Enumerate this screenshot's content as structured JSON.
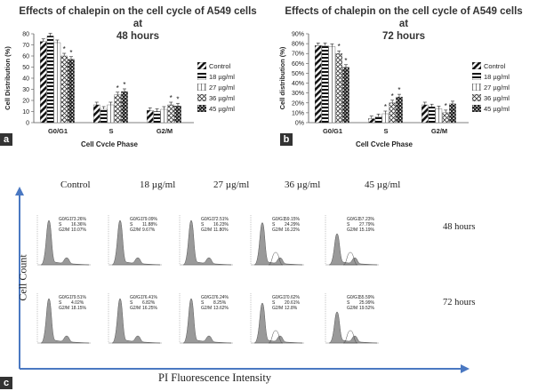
{
  "chart_data": [
    {
      "type": "bar",
      "panel": "a",
      "title": "Effects of chalepin on the cell cycle of A549 cells at 48 hours",
      "xlabel": "Cell Cycle Phase",
      "ylabel": "Cell Distribution (%)",
      "ylim": [
        0,
        80
      ],
      "yticks": [
        "0",
        "10",
        "20",
        "30",
        "40",
        "50",
        "60",
        "70",
        "80"
      ],
      "categories": [
        "G0/G1",
        "S",
        "G2/M"
      ],
      "series": [
        {
          "name": "Control",
          "values": [
            73,
            16,
            11
          ]
        },
        {
          "name": "18 µg/ml",
          "values": [
            78,
            12,
            10
          ]
        },
        {
          "name": "27 µg/ml",
          "values": [
            72,
            16,
            12
          ]
        },
        {
          "name": "36 µg/ml",
          "values": [
            60,
            25,
            16
          ]
        },
        {
          "name": "45 µg/ml",
          "values": [
            57,
            28,
            15
          ]
        }
      ],
      "stars": [
        [
          0,
          4
        ],
        [
          0,
          3
        ],
        [
          1,
          4
        ],
        [
          1,
          3
        ],
        [
          2,
          3
        ],
        [
          2,
          4
        ]
      ]
    },
    {
      "type": "bar",
      "panel": "b",
      "title": "Effects of chalepin on the cell cycle of A549 cells at 72 hours",
      "xlabel": "Cell Cycle Phase",
      "ylabel": "Cell distribution (%)",
      "ylim": [
        0,
        90
      ],
      "yticks": [
        "0%",
        "10%",
        "20%",
        "30%",
        "40%",
        "50%",
        "60%",
        "70%",
        "80%",
        "90%"
      ],
      "categories": [
        "G0/G1",
        "S",
        "G2/M"
      ],
      "series": [
        {
          "name": "Control",
          "values": [
            78,
            4,
            18
          ]
        },
        {
          "name": "18 µg/ml",
          "values": [
            78,
            6,
            16
          ]
        },
        {
          "name": "27 µg/ml",
          "values": [
            77,
            9,
            14
          ]
        },
        {
          "name": "36 µg/ml",
          "values": [
            70,
            20,
            10
          ]
        },
        {
          "name": "45 µg/ml",
          "values": [
            56,
            26,
            19
          ]
        }
      ],
      "stars": [
        [
          0,
          3
        ],
        [
          0,
          4
        ],
        [
          1,
          2
        ],
        [
          1,
          3
        ],
        [
          1,
          4
        ],
        [
          2,
          3
        ]
      ]
    }
  ],
  "panel_labels": {
    "a": "a",
    "b": "b",
    "c": "c"
  },
  "titles": {
    "a_line1": "Effects of chalepin on the cell cycle of A549 cells at",
    "a_line2": "48 hours",
    "b_line1": "Effects of chalepin on the cell cycle of A549 cells at",
    "b_line2": "72 hours"
  },
  "axis_labels": {
    "a_x": "Cell Cycle Phase",
    "a_y": "Cell Distribution (%)",
    "b_x": "Cell Cycle Phase",
    "b_y": "Cell distribution (%)"
  },
  "legend": [
    "Control",
    "18 µg/ml",
    "27 µg/ml",
    "36 µg/ml",
    "45 µg/ml"
  ],
  "flow": {
    "columns": [
      "Control",
      "18 µg/ml",
      "27 µg/ml",
      "36 µg/ml",
      "45 µg/ml"
    ],
    "rows": [
      "48 hours",
      "72 hours"
    ],
    "y_axis_label": "Cell Count",
    "x_axis_label": "PI Fluorescence Intensity",
    "stats": [
      [
        [
          [
            "G0/G1",
            "73.26%"
          ],
          [
            "S",
            "16.36%"
          ],
          [
            "G2/M",
            "10.07%"
          ]
        ],
        [
          [
            "G0/G1",
            "79.09%"
          ],
          [
            "S",
            "11.88%"
          ],
          [
            "G2/M",
            "9.67%"
          ]
        ],
        [
          [
            "G0/G1",
            "72.51%"
          ],
          [
            "S",
            "16.23%"
          ],
          [
            "G2/M",
            "11.80%"
          ]
        ],
        [
          [
            "G0/G1",
            "59.15%"
          ],
          [
            "S",
            "24.29%"
          ],
          [
            "G2/M",
            "16.22%"
          ]
        ],
        [
          [
            "G0/G1",
            "57.23%"
          ],
          [
            "S",
            "27.79%"
          ],
          [
            "G2/M",
            "15.19%"
          ]
        ]
      ],
      [
        [
          [
            "G0/G1",
            "79.51%"
          ],
          [
            "S",
            "4.02%"
          ],
          [
            "G2/M",
            "18.15%"
          ]
        ],
        [
          [
            "G0/G1",
            "76.41%"
          ],
          [
            "S",
            "6.82%"
          ],
          [
            "G2/M",
            "16.25%"
          ]
        ],
        [
          [
            "G0/G1",
            "76.24%"
          ],
          [
            "S",
            "8.25%"
          ],
          [
            "G2/M",
            "13.62%"
          ]
        ],
        [
          [
            "G0/G1",
            "70.62%"
          ],
          [
            "S",
            "20.61%"
          ],
          [
            "G2/M",
            "12.8%"
          ]
        ],
        [
          [
            "G0/G1",
            "55.59%"
          ],
          [
            "S",
            "25.99%"
          ],
          [
            "G2/M",
            "19.52%"
          ]
        ]
      ]
    ]
  }
}
